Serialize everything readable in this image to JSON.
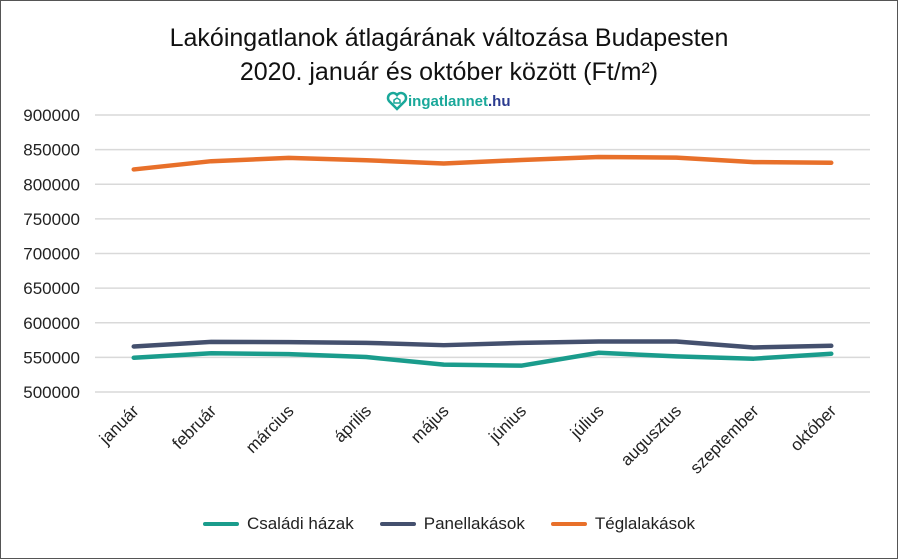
{
  "chart_data": {
    "type": "line",
    "title": "Lakóingatlanok átlagárának változása Budapesten",
    "subtitle": "2020. január és október között (Ft/m²)",
    "logo_text": "ingatlannet.hu",
    "categories": [
      "január",
      "február",
      "március",
      "április",
      "május",
      "június",
      "július",
      "augusztus",
      "szeptember",
      "október"
    ],
    "ylim": [
      500000,
      900000
    ],
    "yticks": [
      "500000",
      "550000",
      "600000",
      "650000",
      "700000",
      "750000",
      "800000",
      "850000",
      "900000"
    ],
    "grid": true,
    "legend": "bottom",
    "series": [
      {
        "name": "Családi házak",
        "color": "#1a9c8c",
        "values": [
          549500,
          556000,
          554700,
          550500,
          539500,
          538000,
          556700,
          551400,
          548100,
          555300
        ]
      },
      {
        "name": "Panellakások",
        "color": "#44506e",
        "values": [
          565700,
          572400,
          572000,
          571000,
          567600,
          571000,
          572900,
          573000,
          564300,
          566700
        ]
      },
      {
        "name": "Téglalakások",
        "color": "#e8702a",
        "values": [
          821400,
          833300,
          838000,
          834700,
          830000,
          835000,
          839400,
          838500,
          832000,
          831000
        ]
      }
    ]
  }
}
